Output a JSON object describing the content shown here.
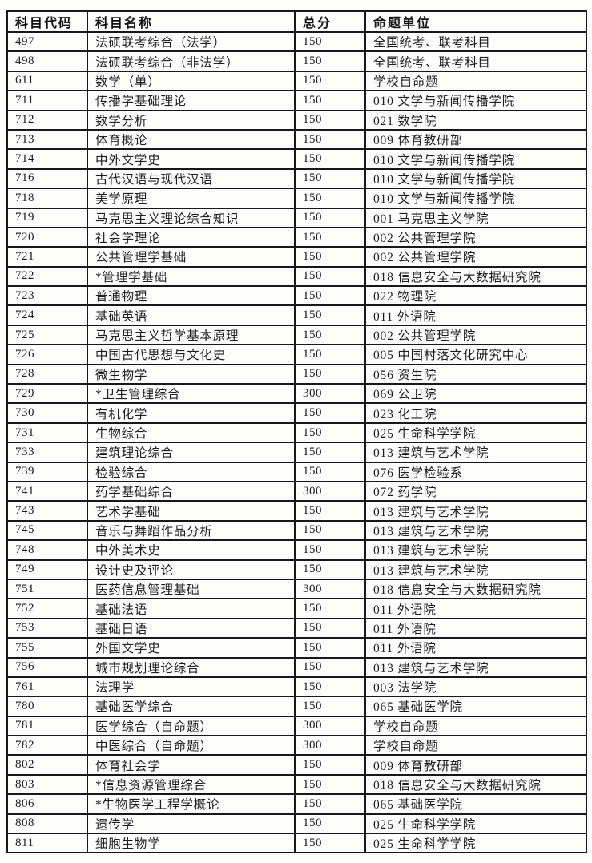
{
  "table": {
    "headers": [
      "科目代码",
      "科目名称",
      "总分",
      "命题单位"
    ],
    "rows": [
      [
        "497",
        "法硕联考综合（法学）",
        "150",
        "全国统考、联考科目"
      ],
      [
        "498",
        "法硕联考综合（非法学）",
        "150",
        "全国统考、联考科目"
      ],
      [
        "611",
        "数学（单）",
        "150",
        "学校自命题"
      ],
      [
        "711",
        "传播学基础理论",
        "150",
        "010 文学与新闻传播学院"
      ],
      [
        "712",
        "数学分析",
        "150",
        "021 数学院"
      ],
      [
        "713",
        "体育概论",
        "150",
        "009 体育教研部"
      ],
      [
        "714",
        "中外文学史",
        "150",
        "010 文学与新闻传播学院"
      ],
      [
        "716",
        "古代汉语与现代汉语",
        "150",
        "010 文学与新闻传播学院"
      ],
      [
        "718",
        "美学原理",
        "150",
        "010 文学与新闻传播学院"
      ],
      [
        "719",
        "马克思主义理论综合知识",
        "150",
        "001 马克思主义学院"
      ],
      [
        "720",
        "社会学理论",
        "150",
        "002 公共管理学院"
      ],
      [
        "721",
        "公共管理学基础",
        "150",
        "002 公共管理学院"
      ],
      [
        "722",
        "*管理学基础",
        "150",
        "018 信息安全与大数据研究院"
      ],
      [
        "723",
        "普通物理",
        "150",
        "022 物理院"
      ],
      [
        "724",
        "基础英语",
        "150",
        "011 外语院"
      ],
      [
        "725",
        "马克思主义哲学基本原理",
        "150",
        "002 公共管理学院"
      ],
      [
        "726",
        "中国古代思想与文化史",
        "150",
        "005 中国村落文化研究中心"
      ],
      [
        "728",
        "微生物学",
        "150",
        "056 资生院"
      ],
      [
        "729",
        "*卫生管理综合",
        "300",
        "069 公卫院"
      ],
      [
        "730",
        "有机化学",
        "150",
        "023 化工院"
      ],
      [
        "731",
        "生物综合",
        "150",
        "025 生命科学学院"
      ],
      [
        "733",
        "建筑理论综合",
        "150",
        "013 建筑与艺术学院"
      ],
      [
        "739",
        "检验综合",
        "150",
        "076 医学检验系"
      ],
      [
        "741",
        "药学基础综合",
        "300",
        "072 药学院"
      ],
      [
        "743",
        "艺术学基础",
        "150",
        "013 建筑与艺术学院"
      ],
      [
        "745",
        "音乐与舞蹈作品分析",
        "150",
        "013 建筑与艺术学院"
      ],
      [
        "748",
        "中外美术史",
        "150",
        "013 建筑与艺术学院"
      ],
      [
        "749",
        "设计史及评论",
        "150",
        "013 建筑与艺术学院"
      ],
      [
        "751",
        "医药信息管理基础",
        "300",
        "018 信息安全与大数据研究院"
      ],
      [
        "752",
        "基础法语",
        "150",
        "011 外语院"
      ],
      [
        "753",
        "基础日语",
        "150",
        "011 外语院"
      ],
      [
        "755",
        "外国文学史",
        "150",
        "011 外语院"
      ],
      [
        "756",
        "城市规划理论综合",
        "150",
        "013 建筑与艺术学院"
      ],
      [
        "761",
        "法理学",
        "150",
        "003 法学院"
      ],
      [
        "780",
        "基础医学综合",
        "150",
        "065 基础医学院"
      ],
      [
        "781",
        "医学综合（自命题）",
        "300",
        "学校自命题"
      ],
      [
        "782",
        "中医综合（自命题）",
        "300",
        "学校自命题"
      ],
      [
        "802",
        "体育社会学",
        "150",
        "009 体育教研部"
      ],
      [
        "803",
        "*信息资源管理综合",
        "150",
        "018 信息安全与大数据研究院"
      ],
      [
        "806",
        "*生物医学工程学概论",
        "150",
        "065 基础医学院"
      ],
      [
        "808",
        "遗传学",
        "150",
        "025 生命科学学院"
      ],
      [
        "811",
        "细胞生物学",
        "150",
        "025 生命科学学院"
      ]
    ],
    "border_color": "#181818",
    "text_color": "#1e1e1e",
    "background_color": "#fdfdfc"
  }
}
